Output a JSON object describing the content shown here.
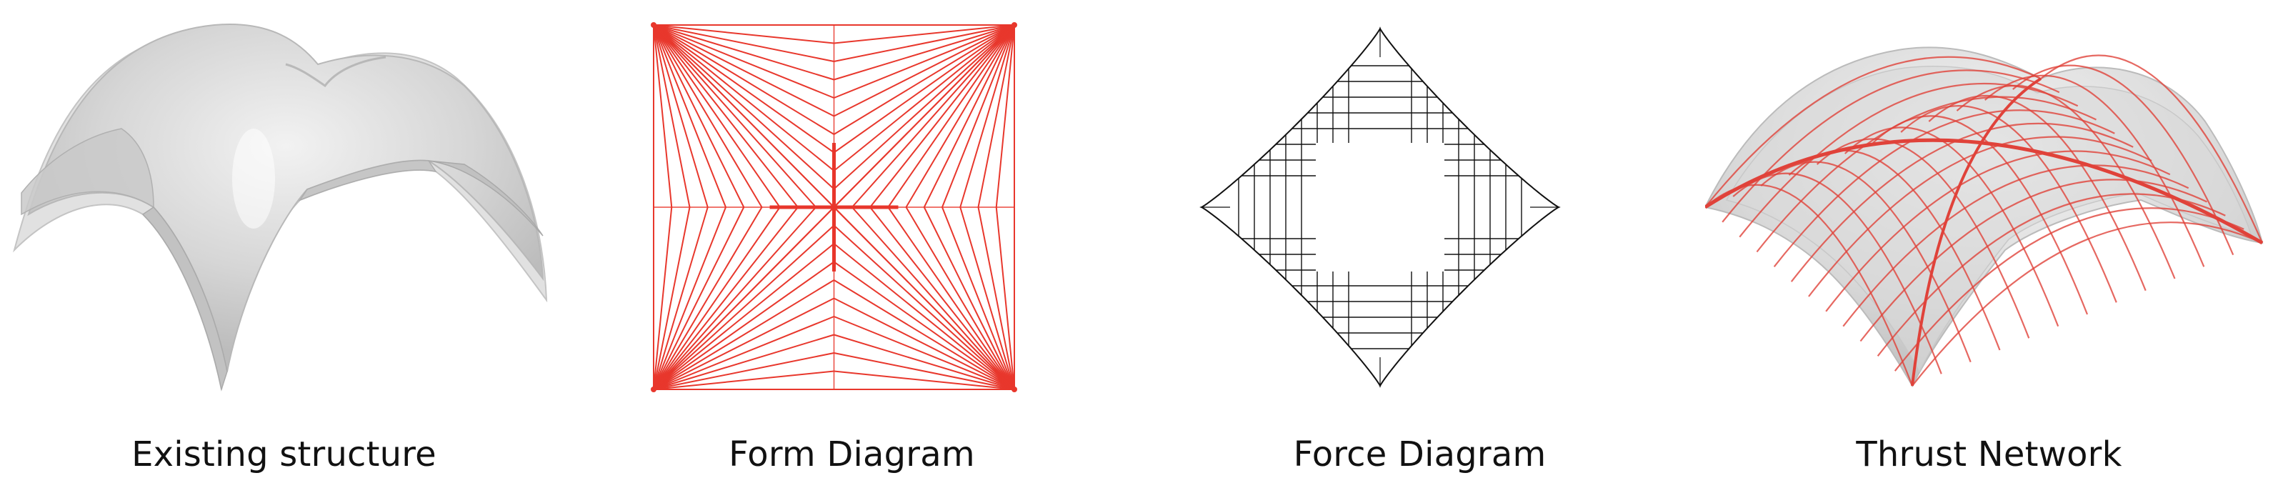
{
  "panels": [
    {
      "id": "existing",
      "caption": "Existing structure"
    },
    {
      "id": "form",
      "caption": "Form Diagram"
    },
    {
      "id": "force",
      "caption": "Force Diagram"
    },
    {
      "id": "thrust",
      "caption": "Thrust Network"
    }
  ],
  "colors": {
    "form_lines": "#e8372c",
    "force_lines": "#111111",
    "shell_fill": "#cfcfcf",
    "thrust_lines": "#e0423a",
    "caption_text": "#111111"
  }
}
